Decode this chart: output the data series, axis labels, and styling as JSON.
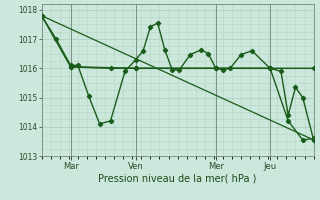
{
  "background_color": "#cce8dc",
  "plot_bg_color": "#cce8dc",
  "grid_color": "#aaccbb",
  "line_color": "#1a5c1a",
  "marker_color": "#1a5c1a",
  "xlabel": "Pression niveau de la mer( hPa )",
  "ylim": [
    1013,
    1018.2
  ],
  "yticks": [
    1013,
    1014,
    1015,
    1016,
    1017,
    1018
  ],
  "xtick_labels": [
    "Mar",
    "Ven",
    "Mer",
    "Jeu"
  ],
  "xtick_positions": [
    8,
    26,
    48,
    63
  ],
  "xlim": [
    0,
    75
  ],
  "vline_positions": [
    8,
    26,
    48,
    63
  ],
  "series_zigzag_x": [
    0,
    4,
    8,
    10,
    13,
    16,
    19,
    23,
    26,
    28,
    30,
    32,
    34,
    36,
    38,
    41,
    44,
    46,
    48,
    50,
    52,
    55,
    58,
    63,
    66,
    68,
    70,
    72,
    75
  ],
  "series_zigzag_y": [
    1017.8,
    1017.0,
    1016.1,
    1016.1,
    1015.05,
    1014.1,
    1014.2,
    1015.9,
    1016.3,
    1016.6,
    1017.42,
    1017.55,
    1016.62,
    1015.95,
    1015.95,
    1016.47,
    1016.63,
    1016.5,
    1016.0,
    1015.95,
    1016.0,
    1016.47,
    1016.6,
    1016.0,
    1015.9,
    1014.4,
    1015.35,
    1015.0,
    1013.55
  ],
  "series_flat_x": [
    8,
    26,
    48,
    63,
    75
  ],
  "series_flat_y": [
    1016.05,
    1016.0,
    1016.0,
    1016.0,
    1016.0
  ],
  "series_trend_x": [
    0,
    75
  ],
  "series_trend_y": [
    1017.8,
    1013.55
  ],
  "series_extra_x": [
    0,
    8,
    19,
    26,
    48,
    63,
    68,
    72,
    75
  ],
  "series_extra_y": [
    1017.8,
    1016.05,
    1016.0,
    1016.0,
    1016.0,
    1016.0,
    1014.2,
    1013.55,
    1013.6
  ]
}
